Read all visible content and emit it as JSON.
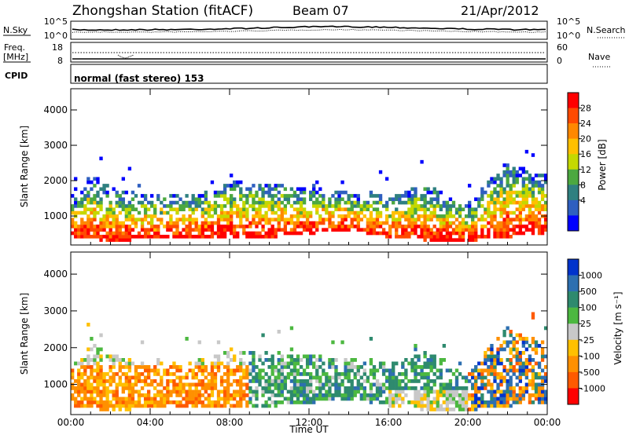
{
  "header": {
    "station": "Zhongshan Station (fitACF)",
    "beam": "Beam 07",
    "date": "21/Apr/2012"
  },
  "status_panels": {
    "nsky_label": "N.Sky",
    "nsearch_label": "N.Search",
    "freq_label_1": "Freq.",
    "freq_label_2": "[MHz]",
    "nave_label": "Nave",
    "cpid_label": "CPID",
    "cpid_value": "normal (fast stereo) 153",
    "nsky_ticks": [
      "10^5",
      "10^0"
    ],
    "nsearch_ticks": [
      "10^5",
      "10^0"
    ],
    "freq_ticks": [
      "18",
      "8"
    ],
    "nave_ticks": [
      "60",
      "0"
    ]
  },
  "chart_data": [
    {
      "type": "heatmap",
      "name": "power",
      "ylabel": "Slant Range [km]",
      "ylim": [
        180,
        4600
      ],
      "yticks": [
        "4000",
        "3000",
        "2000",
        "1000"
      ],
      "colorbar_label": "Power [dB]",
      "colorbar_ticks": [
        "28",
        "24",
        "20",
        "16",
        "12",
        "8",
        "4"
      ],
      "colorbar_colors": [
        "#ff0000",
        "#ff4a00",
        "#ff8800",
        "#ffc000",
        "#c4d800",
        "#4ca840",
        "#2f8080",
        "#2f5fc0",
        "#0000ff"
      ],
      "yrange_samples": [
        {
          "t": 0.5,
          "r": [
            400,
            1600
          ]
        },
        {
          "t": 1.0,
          "r": [
            350,
            2200
          ]
        },
        {
          "t": 2.0,
          "r": [
            300,
            1800
          ]
        },
        {
          "t": 4.0,
          "r": [
            350,
            1600
          ]
        },
        {
          "t": 6.0,
          "r": [
            400,
            1600
          ]
        },
        {
          "t": 8.0,
          "r": [
            400,
            2000
          ]
        },
        {
          "t": 10.0,
          "r": [
            400,
            1900
          ]
        },
        {
          "t": 12.0,
          "r": [
            500,
            1800
          ]
        },
        {
          "t": 14.0,
          "r": [
            600,
            1700
          ]
        },
        {
          "t": 16.0,
          "r": [
            400,
            1600
          ]
        },
        {
          "t": 18.0,
          "r": [
            300,
            1900
          ]
        },
        {
          "t": 20.0,
          "r": [
            300,
            1300
          ]
        },
        {
          "t": 22.0,
          "r": [
            400,
            2600
          ]
        },
        {
          "t": 23.5,
          "r": [
            500,
            2200
          ]
        }
      ]
    },
    {
      "type": "heatmap",
      "name": "velocity",
      "ylabel": "Slant Range [km]",
      "xlabel": "Time UT",
      "ylim": [
        180,
        4600
      ],
      "yticks": [
        "4000",
        "3000",
        "2000",
        "1000"
      ],
      "xticks": [
        "00:00",
        "04:00",
        "08:00",
        "12:00",
        "16:00",
        "20:00",
        "00:00"
      ],
      "xlim_hours": [
        0,
        24
      ],
      "colorbar_label": "Velocity [m s⁻¹]",
      "colorbar_ticks": [
        "1000",
        "500",
        "100",
        "25",
        "-25",
        "-100",
        "-500",
        "-1000"
      ],
      "colorbar_colors": [
        "#0033cc",
        "#2d6fb0",
        "#2e8a6e",
        "#4cb840",
        "#c8c8c8",
        "#ffc000",
        "#ff9000",
        "#ff5a00",
        "#ff0000"
      ]
    }
  ]
}
